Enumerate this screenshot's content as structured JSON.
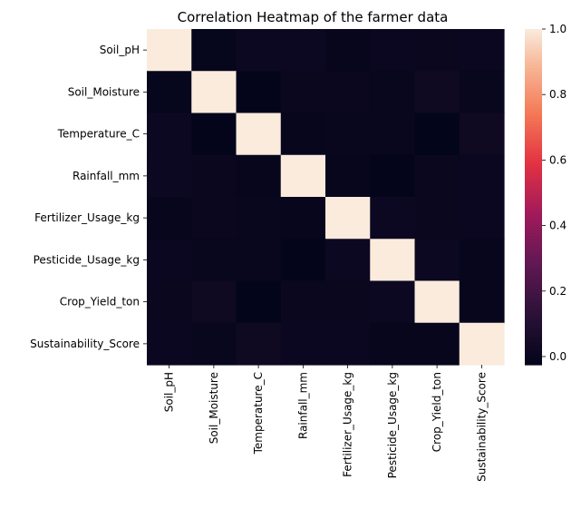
{
  "chart_data": {
    "type": "heatmap",
    "title": "Correlation Heatmap of the farmer data",
    "xlabel": "",
    "ylabel": "",
    "row_labels": [
      "Soil_pH",
      "Soil_Moisture",
      "Temperature_C",
      "Rainfall_mm",
      "Fertilizer_Usage_kg",
      "Pesticide_Usage_kg",
      "Crop_Yield_ton",
      "Sustainability_Score"
    ],
    "col_labels": [
      "Soil_pH",
      "Soil_Moisture",
      "Temperature_C",
      "Rainfall_mm",
      "Fertilizer_Usage_kg",
      "Pesticide_Usage_kg",
      "Crop_Yield_ton",
      "Sustainability_Score"
    ],
    "values": [
      [
        1.0,
        -0.015,
        0.015,
        0.01,
        -0.01,
        0.005,
        0.0,
        0.005
      ],
      [
        -0.015,
        1.0,
        -0.02,
        0.0,
        0.0,
        -0.005,
        0.02,
        -0.005
      ],
      [
        0.015,
        -0.02,
        1.0,
        -0.01,
        -0.005,
        -0.005,
        -0.025,
        0.02
      ],
      [
        0.01,
        0.0,
        -0.01,
        1.0,
        -0.01,
        -0.02,
        0.0,
        0.005
      ],
      [
        -0.01,
        0.0,
        -0.005,
        -0.01,
        1.0,
        0.01,
        0.0,
        0.005
      ],
      [
        0.005,
        -0.005,
        -0.005,
        -0.02,
        0.01,
        1.0,
        0.01,
        -0.01
      ],
      [
        0.0,
        0.02,
        -0.025,
        0.0,
        0.0,
        0.01,
        1.0,
        -0.01
      ],
      [
        0.005,
        -0.005,
        0.02,
        0.005,
        0.005,
        -0.01,
        -0.01,
        1.0
      ]
    ],
    "colorbar": {
      "colormap": "rocket",
      "range": [
        -0.025,
        1.0
      ],
      "ticks": [
        0.0,
        0.2,
        0.4,
        0.6,
        0.8,
        1.0
      ],
      "tick_labels": [
        "0.0",
        "0.2",
        "0.4",
        "0.6",
        "0.8",
        "1.0"
      ]
    },
    "grid": false
  }
}
